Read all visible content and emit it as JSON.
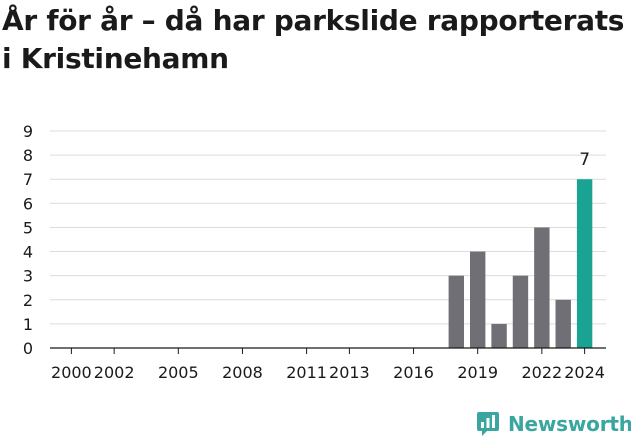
{
  "chart_data": {
    "type": "bar",
    "title": "År för år – då har parkslide rapporterats i Kristinehamn",
    "xlabel": "",
    "ylabel": "",
    "ylim": [
      0,
      9
    ],
    "yticks": [
      0,
      1,
      2,
      3,
      4,
      5,
      6,
      7,
      8,
      9
    ],
    "xlim": [
      1999,
      2025
    ],
    "xtick_values": [
      2000,
      2002,
      2005,
      2008,
      2011,
      2013,
      2016,
      2019,
      2022,
      2024
    ],
    "xtick_labels": [
      "2000",
      "2002",
      "2005",
      "2008",
      "2011",
      "2013",
      "2016",
      "2019",
      "2022",
      "2024"
    ],
    "x": [
      2018,
      2019,
      2020,
      2021,
      2022,
      2023,
      2024
    ],
    "values": [
      3,
      4,
      1,
      3,
      5,
      2,
      7
    ],
    "highlight": {
      "x": 2024,
      "label": "7"
    },
    "grid": true,
    "colors": {
      "bar": "#706f75",
      "highlight": "#1aa393",
      "grid": "#dcdcdc",
      "axis": "#1a1a1a"
    }
  },
  "brand": {
    "name": "Newsworthy",
    "icon": "newsworthy-logo-icon",
    "color": "#3aa6a0"
  }
}
